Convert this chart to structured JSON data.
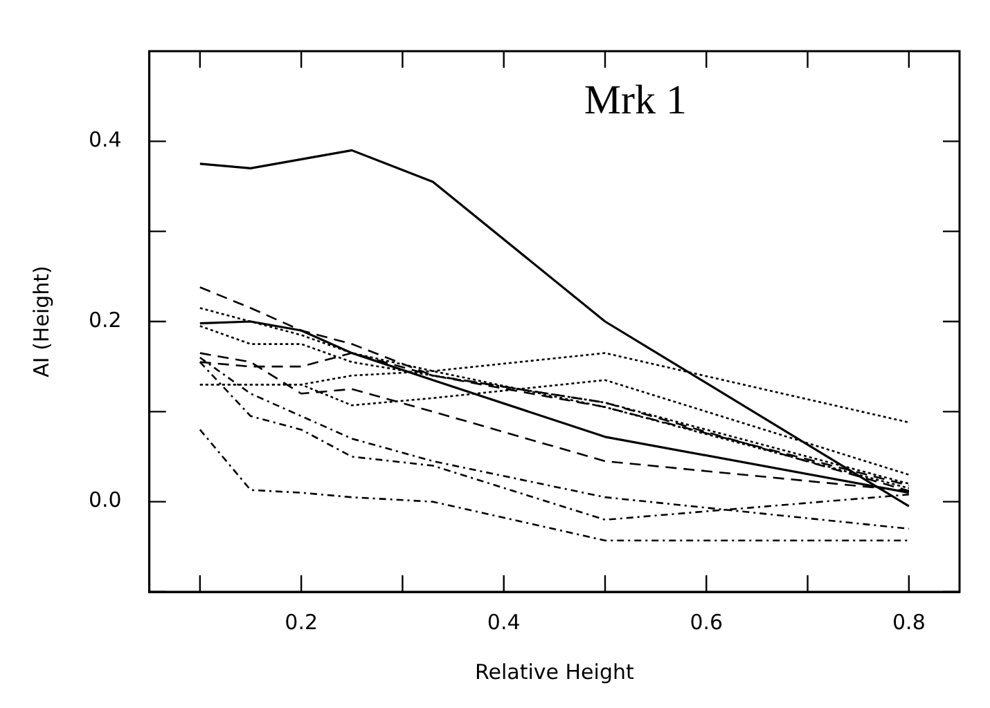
{
  "chart_data": {
    "type": "line",
    "title": "Mrk 1",
    "xlabel": "Relative Height",
    "ylabel": "AI (Height)",
    "xlim": [
      0.05,
      0.85
    ],
    "ylim": [
      -0.1,
      0.5
    ],
    "xticks": [
      {
        "value": 0.1,
        "label": null
      },
      0.2,
      {
        "value": 0.3,
        "label": null
      },
      0.4,
      {
        "value": 0.5,
        "label": null
      },
      0.6,
      {
        "value": 0.7,
        "label": null
      },
      0.8
    ],
    "yticks": [
      {
        "value": -0.1,
        "label": null
      },
      {
        "value": 0,
        "label": "0.0"
      },
      {
        "value": 0.1,
        "label": null
      },
      0.2,
      {
        "value": 0.3,
        "label": null
      },
      0.4
    ],
    "x": [
      0.1,
      0.15,
      0.2,
      0.25,
      0.33,
      0.5,
      0.8
    ],
    "grid": false,
    "legend": false,
    "marker": "none",
    "series": [
      {
        "color": "#000000",
        "line_style": "solid",
        "values": [
          0.375,
          0.37,
          0.38,
          0.39,
          0.355,
          0.2,
          -0.005
        ]
      },
      {
        "color": "#000000",
        "line_style": "solid",
        "values": [
          0.198,
          0.2,
          0.19,
          0.165,
          0.135,
          0.072,
          0.01
        ]
      },
      {
        "color": "#000000",
        "line_style": "dotted",
        "values": [
          0.13,
          0.13,
          0.13,
          0.14,
          0.145,
          0.165,
          0.088
        ]
      },
      {
        "color": "#000000",
        "line_style": "dotted",
        "values": [
          0.13,
          0.13,
          0.13,
          0.107,
          0.115,
          0.135,
          0.03
        ]
      },
      {
        "color": "#000000",
        "line_style": "dotted",
        "values": [
          0.195,
          0.175,
          0.175,
          0.155,
          0.14,
          0.11,
          0.02
        ]
      },
      {
        "color": "#000000",
        "line_style": "dotted",
        "values": [
          0.215,
          0.2,
          0.185,
          0.165,
          0.145,
          0.105,
          0.015
        ]
      },
      {
        "color": "#000000",
        "line_style": "dashed",
        "values": [
          0.238,
          0.215,
          0.19,
          0.175,
          0.14,
          0.105,
          0.018
        ]
      },
      {
        "color": "#000000",
        "line_style": "dashed",
        "values": [
          0.155,
          0.15,
          0.15,
          0.165,
          0.14,
          0.11,
          0.012
        ]
      },
      {
        "color": "#000000",
        "line_style": "dashed",
        "values": [
          0.165,
          0.155,
          0.12,
          0.125,
          0.1,
          0.045,
          0.012
        ]
      },
      {
        "color": "#000000",
        "line_style": "dashdot",
        "values": [
          0.16,
          0.12,
          0.095,
          0.07,
          0.045,
          0.005,
          -0.03
        ]
      },
      {
        "color": "#000000",
        "line_style": "dashdot",
        "values": [
          0.155,
          0.095,
          0.08,
          0.05,
          0.04,
          -0.02,
          0.008
        ]
      },
      {
        "color": "#000000",
        "line_style": "dashdot",
        "values": [
          0.08,
          0.013,
          0.01,
          0.005,
          0.0,
          -0.043,
          -0.043
        ]
      }
    ]
  }
}
